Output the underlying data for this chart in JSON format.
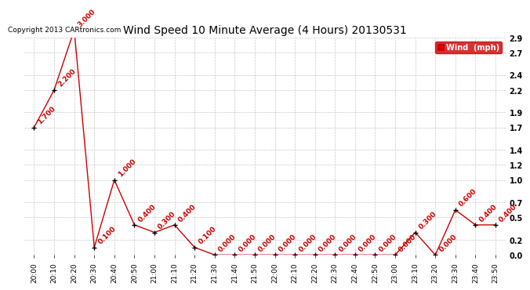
{
  "title": "Wind Speed 10 Minute Average (4 Hours) 20130531",
  "copyright": "Copyright 2013 CARtronics.com",
  "legend_label": "Wind  (mph)",
  "x_labels": [
    "20:00",
    "20:10",
    "20:20",
    "20:30",
    "20:40",
    "20:50",
    "21:00",
    "21:10",
    "21:20",
    "21:30",
    "21:40",
    "21:50",
    "22:00",
    "22:10",
    "22:20",
    "22:30",
    "22:40",
    "22:50",
    "23:00",
    "23:10",
    "23:20",
    "23:30",
    "23:40",
    "23:50"
  ],
  "y_values": [
    1.7,
    2.2,
    3.0,
    0.1,
    1.0,
    0.4,
    0.3,
    0.4,
    0.1,
    0.0,
    0.0,
    0.0,
    0.0,
    0.0,
    0.0,
    0.0,
    0.0,
    0.0,
    0.0,
    0.3,
    0.0,
    0.6,
    0.4,
    0.4
  ],
  "point_labels": [
    "1.700",
    "2.200",
    "3.000",
    "0.100",
    "1.000",
    "0.400",
    "0.300",
    "0.400",
    "0.100",
    "0.000",
    "0.000",
    "0.000",
    "0.000",
    "0.000",
    "0.000",
    "0.000",
    "0.000",
    "0.000",
    "0.000",
    "0.300",
    "0.000",
    "0.600",
    "0.400",
    "0.400"
  ],
  "ylim": [
    0.0,
    2.9
  ],
  "ytick_positions": [
    0.0,
    0.2,
    0.5,
    0.7,
    1.0,
    1.2,
    1.4,
    1.7,
    1.9,
    2.2,
    2.4,
    2.7,
    2.9
  ],
  "ytick_labels": [
    "0.0",
    "0.2",
    "0.5",
    "0.7",
    "1.0",
    "1.2",
    "1.4",
    "1.7",
    "1.9",
    "2.2",
    "2.4",
    "2.7",
    "2.9"
  ],
  "line_color": "#cc0000",
  "marker_color": "#000000",
  "label_color": "#cc0000",
  "bg_color": "#ffffff",
  "grid_color": "#bbbbbb",
  "title_fontsize": 10,
  "label_fontsize": 6.5,
  "copyright_fontsize": 6.5,
  "legend_bg": "#cc0000",
  "legend_fg": "#ffffff"
}
